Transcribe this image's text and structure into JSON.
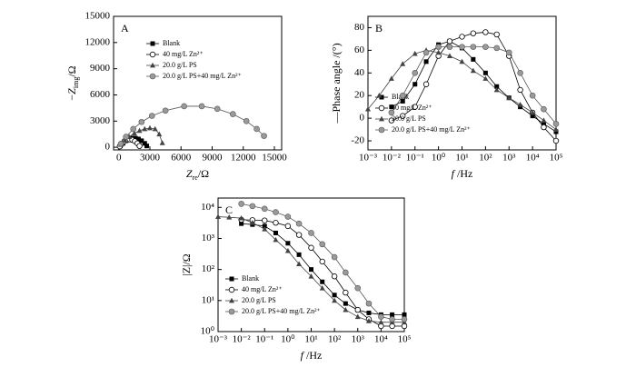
{
  "chart_data": [
    {
      "type": "line",
      "panel_label": "A",
      "xlabel": {
        "main": "Z",
        "sub": "re",
        "rest": "/Ω"
      },
      "ylabel": {
        "pre": "−",
        "main": "Z",
        "sub": "img",
        "rest": "/Ω"
      },
      "xlim": [
        -500,
        15700
      ],
      "ylim": [
        -300,
        15000
      ],
      "xticks": [
        0,
        3000,
        6000,
        9000,
        12000,
        15000
      ],
      "yticks": [
        0,
        3000,
        6000,
        9000,
        12000,
        15000
      ],
      "legend": "upper left",
      "series": [
        {
          "name": "Blank",
          "marker": "square",
          "color": "#000000",
          "x": [
            150,
            400,
            700,
            1000,
            1300,
            1600,
            1900,
            2200,
            2500,
            2700
          ],
          "values": [
            150,
            450,
            750,
            950,
            1050,
            1050,
            950,
            750,
            450,
            150
          ]
        },
        {
          "name": "40 mg/L Zn²⁺",
          "marker": "open-circle",
          "color": "#000000",
          "x": [
            100,
            300,
            550,
            800,
            1050,
            1300,
            1550,
            1800,
            2000
          ],
          "values": [
            100,
            400,
            700,
            850,
            900,
            850,
            700,
            450,
            150
          ]
        },
        {
          "name": "20.0 g/L PS",
          "marker": "triangle",
          "color": "#444444",
          "x": [
            200,
            600,
            1000,
            1500,
            2000,
            2500,
            3000,
            3500,
            3900,
            4200
          ],
          "values": [
            300,
            800,
            1200,
            1600,
            1900,
            2100,
            2200,
            2100,
            1500,
            500
          ]
        },
        {
          "name": "20.0 g/L PS+40 mg/L Zn²⁺",
          "marker": "sphere",
          "color": "#555555",
          "x": [
            200,
            700,
            1400,
            2200,
            3200,
            4500,
            6300,
            8000,
            9500,
            11000,
            12300,
            13300,
            14000
          ],
          "values": [
            400,
            1200,
            2100,
            2900,
            3600,
            4200,
            4700,
            4700,
            4400,
            3800,
            3000,
            2100,
            1300
          ]
        }
      ]
    },
    {
      "type": "line",
      "panel_label": "B",
      "xscale": "log",
      "xlabel": {
        "main": "f",
        "rest": " /Hz"
      },
      "ylabel": "—Phase angle /(°)",
      "xlim": [
        0.001,
        100000
      ],
      "ylim": [
        -28,
        90
      ],
      "xticks": [
        {
          "value": 0.001,
          "label": "10⁻³"
        },
        {
          "value": 0.01,
          "label": "10⁻²"
        },
        {
          "value": 0.1,
          "label": "10⁻¹"
        },
        {
          "value": 1,
          "label": "10⁰"
        },
        {
          "value": 10,
          "label": "10¹"
        },
        {
          "value": 100,
          "label": "10²"
        },
        {
          "value": 1000,
          "label": "10³"
        },
        {
          "value": 10000,
          "label": "10⁴"
        },
        {
          "value": 100000,
          "label": "10⁵"
        }
      ],
      "yticks": [
        -20,
        0,
        20,
        40,
        60,
        80
      ],
      "legend": "lower left",
      "series": [
        {
          "name": "Blank",
          "marker": "square",
          "color": "#000000",
          "x": [
            0.01,
            0.03,
            0.1,
            0.3,
            1,
            3,
            10,
            30,
            100,
            300,
            1000,
            3000,
            10000,
            30000,
            100000
          ],
          "values": [
            10,
            15,
            30,
            50,
            65,
            68,
            62,
            52,
            40,
            28,
            18,
            10,
            2,
            -5,
            -12
          ]
        },
        {
          "name": "40 mg/L Zn²⁺",
          "marker": "open-circle",
          "color": "#000000",
          "x": [
            0.01,
            0.03,
            0.1,
            0.3,
            1,
            3,
            10,
            30,
            100,
            300,
            1000,
            3000,
            10000,
            30000,
            100000
          ],
          "values": [
            -2,
            2,
            10,
            30,
            55,
            68,
            72,
            75,
            76,
            74,
            55,
            25,
            5,
            -8,
            -20
          ]
        },
        {
          "name": "20.0 g/L PS",
          "marker": "triangle",
          "color": "#444444",
          "x": [
            0.001,
            0.003,
            0.01,
            0.03,
            0.1,
            0.3,
            1,
            3,
            10,
            30,
            100,
            300,
            1000,
            3000,
            10000,
            30000,
            100000
          ],
          "values": [
            8,
            20,
            35,
            48,
            57,
            60,
            58,
            55,
            50,
            42,
            35,
            25,
            18,
            12,
            5,
            -2,
            -10
          ]
        },
        {
          "name": "20.0 g/L PS+40 mg/L Zn²⁺",
          "marker": "sphere",
          "color": "#555555",
          "x": [
            0.01,
            0.03,
            0.1,
            0.3,
            1,
            3,
            10,
            30,
            100,
            300,
            1000,
            3000,
            10000,
            30000,
            100000
          ],
          "values": [
            5,
            20,
            40,
            58,
            63,
            63,
            63,
            63,
            63,
            62,
            58,
            40,
            20,
            8,
            -5
          ]
        }
      ]
    },
    {
      "type": "line",
      "panel_label": "C",
      "xscale": "log",
      "yscale": "log",
      "xlabel": {
        "main": "f",
        "rest": " /Hz"
      },
      "ylabel": "|Z|/Ω",
      "xlim": [
        0.001,
        100000
      ],
      "ylim": [
        1,
        20000
      ],
      "xticks": [
        {
          "value": 0.001,
          "label": "10⁻³"
        },
        {
          "value": 0.01,
          "label": "10⁻²"
        },
        {
          "value": 0.1,
          "label": "10⁻¹"
        },
        {
          "value": 1,
          "label": "10⁰"
        },
        {
          "value": 10,
          "label": "10¹"
        },
        {
          "value": 100,
          "label": "10²"
        },
        {
          "value": 1000,
          "label": "10³"
        },
        {
          "value": 10000,
          "label": "10⁴"
        },
        {
          "value": 100000,
          "label": "10⁵"
        }
      ],
      "yticks": [
        {
          "value": 1,
          "label": "10⁰"
        },
        {
          "value": 10,
          "label": "10¹"
        },
        {
          "value": 100,
          "label": "10²"
        },
        {
          "value": 1000,
          "label": "10³"
        },
        {
          "value": 10000,
          "label": "10⁴"
        }
      ],
      "legend": "lower left",
      "series": [
        {
          "name": "Blank",
          "marker": "square",
          "color": "#000000",
          "x": [
            0.01,
            0.03,
            0.1,
            0.3,
            1,
            3,
            10,
            30,
            100,
            300,
            1000,
            3000,
            10000,
            30000,
            100000
          ],
          "values": [
            3000,
            2800,
            2500,
            1500,
            700,
            300,
            100,
            40,
            15,
            8,
            5,
            4,
            3.5,
            3.5,
            3.5
          ]
        },
        {
          "name": "40 mg/L Zn²⁺",
          "marker": "open-circle",
          "color": "#000000",
          "x": [
            0.01,
            0.03,
            0.1,
            0.3,
            1,
            3,
            10,
            30,
            100,
            300,
            1000,
            3000,
            10000,
            30000,
            100000
          ],
          "values": [
            4000,
            3900,
            3800,
            3200,
            2500,
            1300,
            500,
            180,
            60,
            18,
            5,
            2.5,
            1.5,
            1.5,
            1.5
          ]
        },
        {
          "name": "20.0 g/L PS",
          "marker": "triangle",
          "color": "#444444",
          "x": [
            0.001,
            0.003,
            0.01,
            0.03,
            0.1,
            0.3,
            1,
            3,
            10,
            30,
            100,
            300,
            1000,
            3000,
            10000,
            30000,
            100000
          ],
          "values": [
            5000,
            4800,
            4500,
            3200,
            2000,
            900,
            400,
            150,
            60,
            25,
            10,
            5,
            3,
            2.2,
            2,
            2,
            2
          ]
        },
        {
          "name": "20.0 g/L PS+40 mg/L Zn²⁺",
          "marker": "sphere",
          "color": "#555555",
          "x": [
            0.01,
            0.03,
            0.1,
            0.3,
            1,
            3,
            10,
            30,
            100,
            300,
            1000,
            3000,
            10000,
            30000,
            100000
          ],
          "values": [
            13000,
            11000,
            9000,
            7000,
            5000,
            3000,
            1500,
            650,
            250,
            80,
            25,
            8,
            3,
            2.5,
            2.5
          ]
        }
      ]
    }
  ]
}
